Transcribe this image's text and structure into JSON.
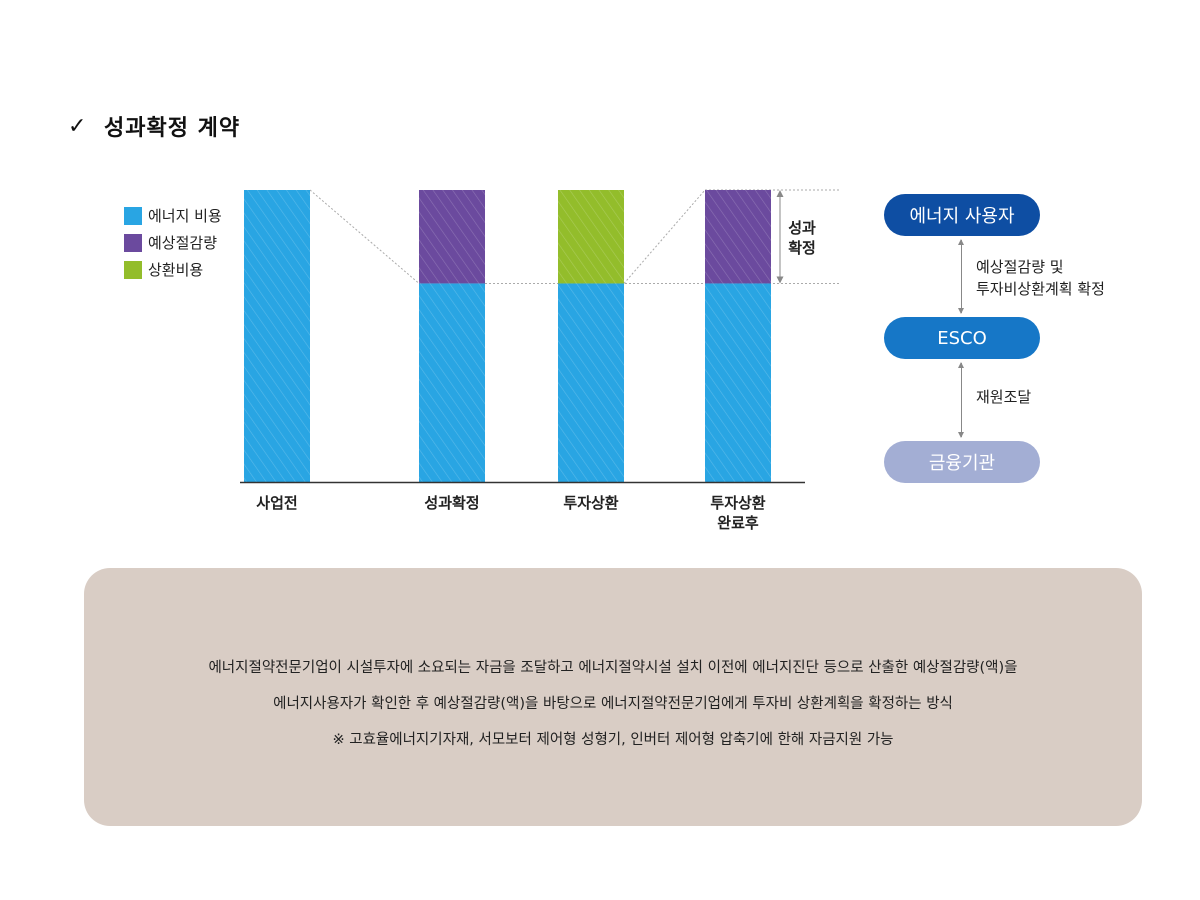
{
  "heading": {
    "check": "✓",
    "title": "성과확정 계약"
  },
  "chart_data": {
    "type": "bar",
    "categories": [
      "사업전",
      "성과확정",
      "투자상환",
      "투자상환\n완료후"
    ],
    "series": [
      {
        "name": "에너지 비용",
        "color": "#29a5e3",
        "values": [
          100,
          68,
          68,
          68
        ]
      },
      {
        "name": "예상절감량",
        "color": "#6b4a9e",
        "values": [
          0,
          32,
          0,
          32
        ]
      },
      {
        "name": "상환비용",
        "color": "#93bd2b",
        "values": [
          0,
          0,
          32,
          0
        ]
      }
    ],
    "ylim": [
      0,
      100
    ],
    "bracket_label": [
      "성과",
      "확정"
    ]
  },
  "flow": {
    "user": "에너지 사용자",
    "label_1": [
      "예상절감량 및",
      "투자비상환계획 확정"
    ],
    "esco": "ESCO",
    "label_2": "재원조달",
    "bank": "금융기관"
  },
  "info": {
    "line1": "에너지절약전문기업이 시설투자에 소요되는 자금을 조달하고 에너지절약시설 설치 이전에 에너지진단 등으로 산출한 예상절감량(액)을",
    "line2": "에너지사용자가 확인한 후 예상절감량(액)을 바탕으로 에너지절약전문기업에게 투자비 상환계획을 확정하는 방식",
    "line3": "※ 고효율에너지기자재, 서모보터 제어형 성형기, 인버터 제어형 압축기에 한해 자금지원 가능"
  }
}
